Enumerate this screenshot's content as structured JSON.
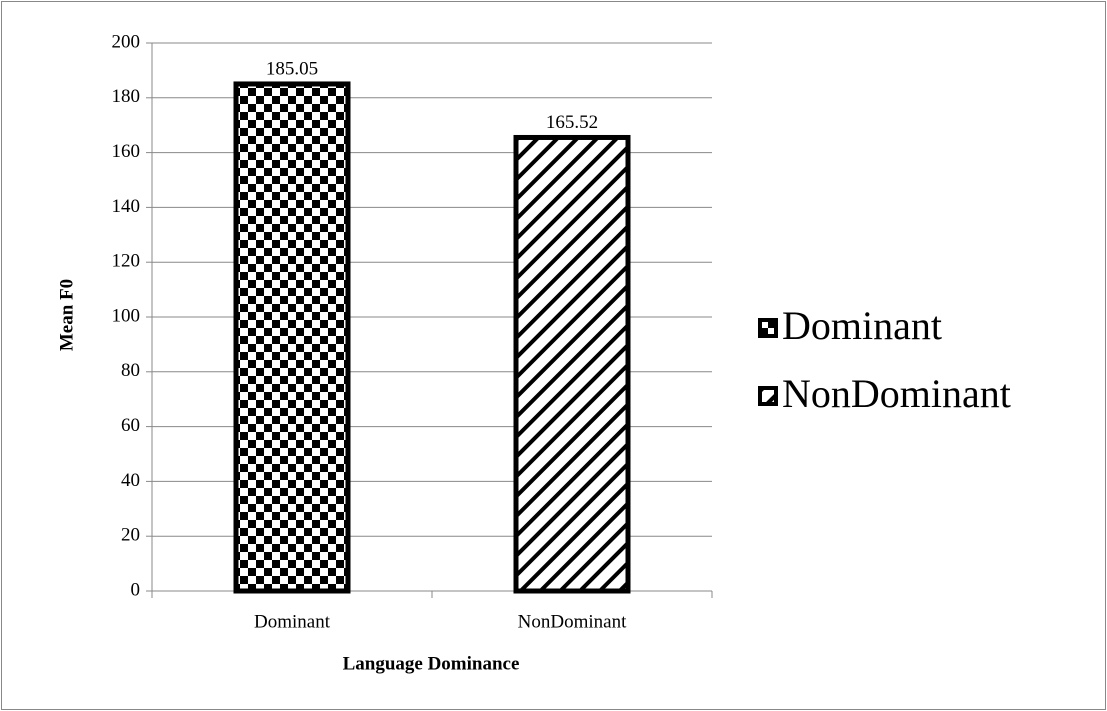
{
  "chart_data": {
    "type": "bar",
    "categories": [
      "Dominant",
      "NonDominant"
    ],
    "series": [
      {
        "name": "Dominant",
        "color": "#000000",
        "pattern": "checker",
        "values": [
          185.05,
          null
        ]
      },
      {
        "name": "NonDominant",
        "color": "#000000",
        "pattern": "diagonal",
        "values": [
          null,
          165.52
        ]
      }
    ],
    "ylim": [
      0,
      200
    ],
    "yticks": [
      0,
      20,
      40,
      60,
      80,
      100,
      120,
      140,
      160,
      180,
      200
    ],
    "grid": true,
    "legend": "right",
    "x_label": "Language Dominance",
    "y_label": "Mean F0"
  }
}
